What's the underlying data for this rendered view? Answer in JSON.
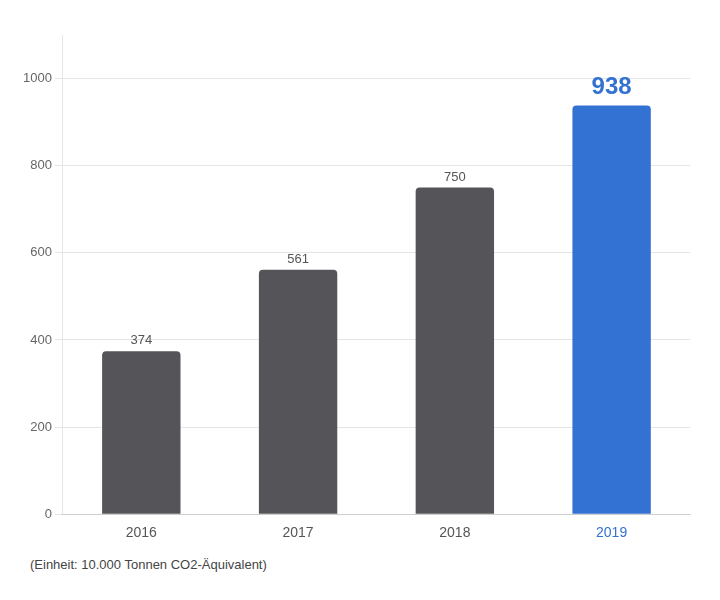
{
  "chart_data": {
    "type": "bar",
    "categories": [
      "2016",
      "2017",
      "2018",
      "2019"
    ],
    "values": [
      374,
      561,
      750,
      938
    ],
    "colors": [
      "#555559",
      "#555559",
      "#555559",
      "#3371D3"
    ],
    "ylim": [
      0,
      1100
    ],
    "yticks": [
      0,
      200,
      400,
      600,
      800,
      1000
    ],
    "grid": true,
    "data_labels": true,
    "annotations": [
      "(Einheit: 10.000 Tonnen CO2-Äquivalent)"
    ]
  }
}
